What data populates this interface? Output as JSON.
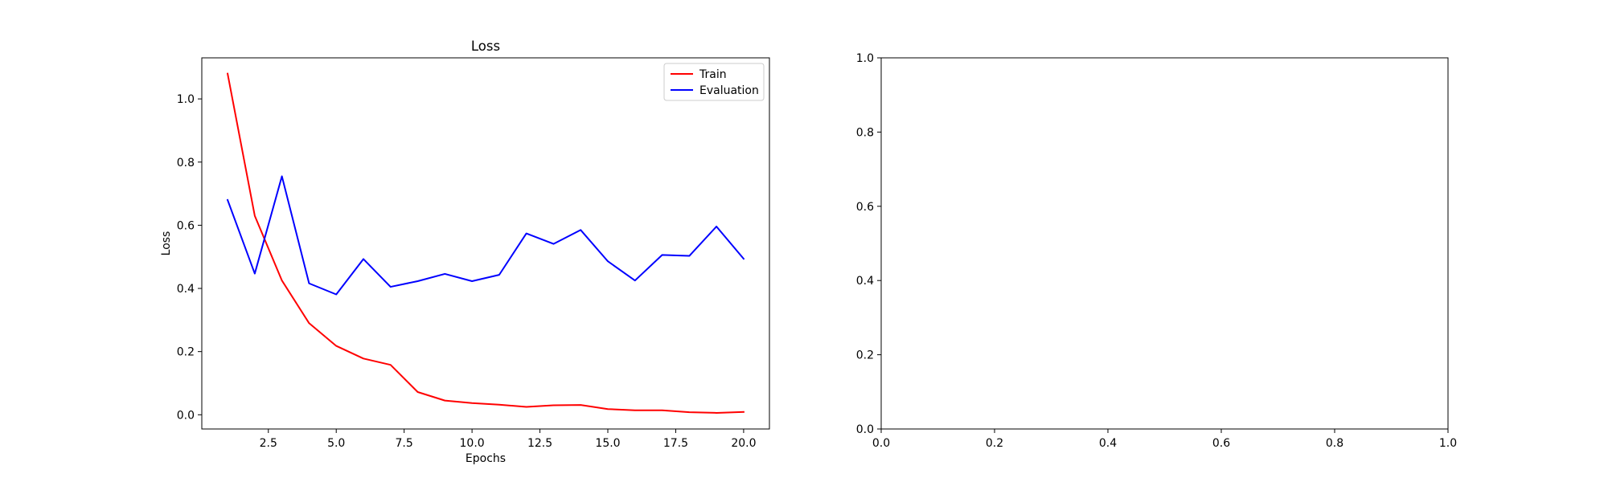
{
  "chart_data": [
    {
      "type": "line",
      "title": "Loss",
      "xlabel": "Epochs",
      "ylabel": "Loss",
      "x": [
        1,
        2,
        3,
        4,
        5,
        6,
        7,
        8,
        9,
        10,
        11,
        12,
        13,
        14,
        15,
        16,
        17,
        18,
        19,
        20
      ],
      "xlim": [
        0.05,
        20.95
      ],
      "ylim": [
        -0.045,
        1.13
      ],
      "xticks": [
        2.5,
        5.0,
        7.5,
        10.0,
        12.5,
        15.0,
        17.5,
        20.0
      ],
      "xtick_labels": [
        "2.5",
        "5.0",
        "7.5",
        "10.0",
        "12.5",
        "15.0",
        "17.5",
        "20.0"
      ],
      "yticks": [
        0.0,
        0.2,
        0.4,
        0.6,
        0.8,
        1.0
      ],
      "ytick_labels": [
        "0.0",
        "0.2",
        "0.4",
        "0.6",
        "0.8",
        "1.0"
      ],
      "grid": false,
      "legend": "top-right",
      "series": [
        {
          "name": "Train",
          "color": "#ff0000",
          "values": [
            1.08,
            0.63,
            0.425,
            0.29,
            0.218,
            0.178,
            0.158,
            0.072,
            0.045,
            0.037,
            0.032,
            0.025,
            0.03,
            0.031,
            0.018,
            0.014,
            0.014,
            0.008,
            0.006,
            0.009
          ]
        },
        {
          "name": "Evaluation",
          "color": "#0000ff",
          "values": [
            0.68,
            0.447,
            0.755,
            0.416,
            0.381,
            0.493,
            0.405,
            0.423,
            0.446,
            0.423,
            0.443,
            0.574,
            0.541,
            0.585,
            0.486,
            0.425,
            0.506,
            0.503,
            0.596,
            0.494
          ]
        }
      ]
    },
    {
      "type": "line",
      "title": "",
      "xlabel": "",
      "ylabel": "",
      "xlim": [
        0.0,
        1.0
      ],
      "ylim": [
        0.0,
        1.0
      ],
      "xticks": [
        0.0,
        0.2,
        0.4,
        0.6,
        0.8,
        1.0
      ],
      "xtick_labels": [
        "0.0",
        "0.2",
        "0.4",
        "0.6",
        "0.8",
        "1.0"
      ],
      "yticks": [
        0.0,
        0.2,
        0.4,
        0.6,
        0.8,
        1.0
      ],
      "ytick_labels": [
        "0.0",
        "0.2",
        "0.4",
        "0.6",
        "0.8",
        "1.0"
      ],
      "grid": false,
      "series": []
    }
  ]
}
